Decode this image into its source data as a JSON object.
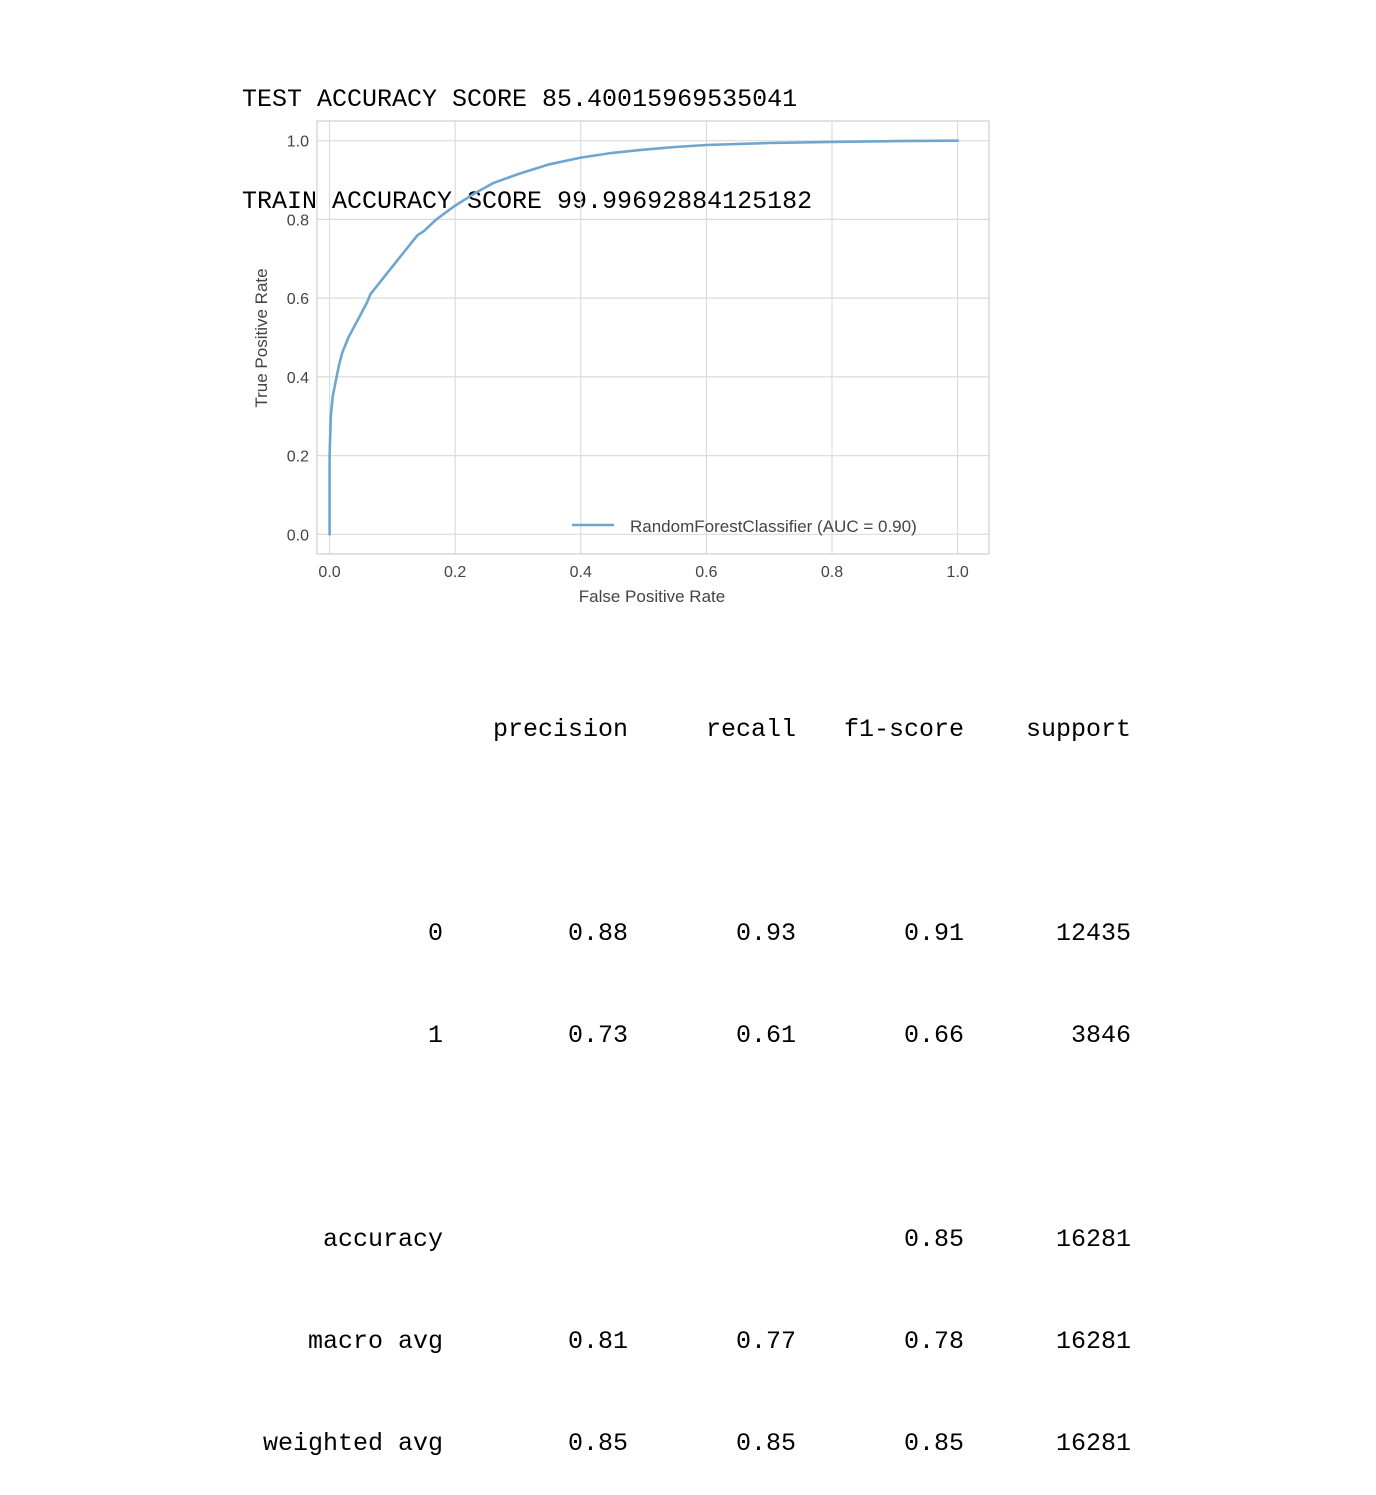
{
  "scores": {
    "test": "TEST ACCURACY SCORE 85.40015969535041",
    "train": "TRAIN ACCURACY SCORE 99.99692884125182"
  },
  "chart_data": {
    "type": "line",
    "xlabel": "False Positive Rate",
    "ylabel": "True Positive Rate",
    "xlim": [
      -0.02,
      1.05
    ],
    "ylim": [
      -0.05,
      1.05
    ],
    "xticks": [
      "0.0",
      "0.2",
      "0.4",
      "0.6",
      "0.8",
      "1.0"
    ],
    "yticks": [
      "0.0",
      "0.2",
      "0.4",
      "0.6",
      "0.8",
      "1.0"
    ],
    "grid": true,
    "legend_position": "lower-right",
    "colors": {
      "line": "#6fa6cf",
      "grid": "#dcdcdc",
      "frame": "#cfcfcf"
    },
    "series": [
      {
        "name": "RandomForestClassifier (AUC = 0.90)",
        "x": [
          0.0,
          0.0,
          0.002,
          0.005,
          0.01,
          0.015,
          0.02,
          0.03,
          0.04,
          0.05,
          0.06,
          0.065,
          0.08,
          0.1,
          0.12,
          0.14,
          0.15,
          0.17,
          0.2,
          0.23,
          0.26,
          0.3,
          0.35,
          0.4,
          0.45,
          0.5,
          0.55,
          0.6,
          0.7,
          0.8,
          0.9,
          1.0
        ],
        "y": [
          0.0,
          0.2,
          0.3,
          0.35,
          0.39,
          0.43,
          0.46,
          0.5,
          0.53,
          0.56,
          0.59,
          0.61,
          0.64,
          0.68,
          0.72,
          0.76,
          0.77,
          0.8,
          0.835,
          0.865,
          0.892,
          0.915,
          0.94,
          0.957,
          0.969,
          0.977,
          0.984,
          0.989,
          0.994,
          0.997,
          0.999,
          1.0
        ]
      }
    ]
  },
  "report": {
    "headers": [
      "",
      "precision",
      "recall",
      "f1-score",
      "support"
    ],
    "rows": [
      [
        "0",
        "0.88",
        "0.93",
        "0.91",
        "12435"
      ],
      [
        "1",
        "0.73",
        "0.61",
        "0.66",
        "3846"
      ]
    ],
    "summary": [
      [
        "accuracy",
        "",
        "",
        "0.85",
        "16281"
      ],
      [
        "macro avg",
        "0.81",
        "0.77",
        "0.78",
        "16281"
      ],
      [
        "weighted avg",
        "0.85",
        "0.85",
        "0.85",
        "16281"
      ]
    ]
  }
}
